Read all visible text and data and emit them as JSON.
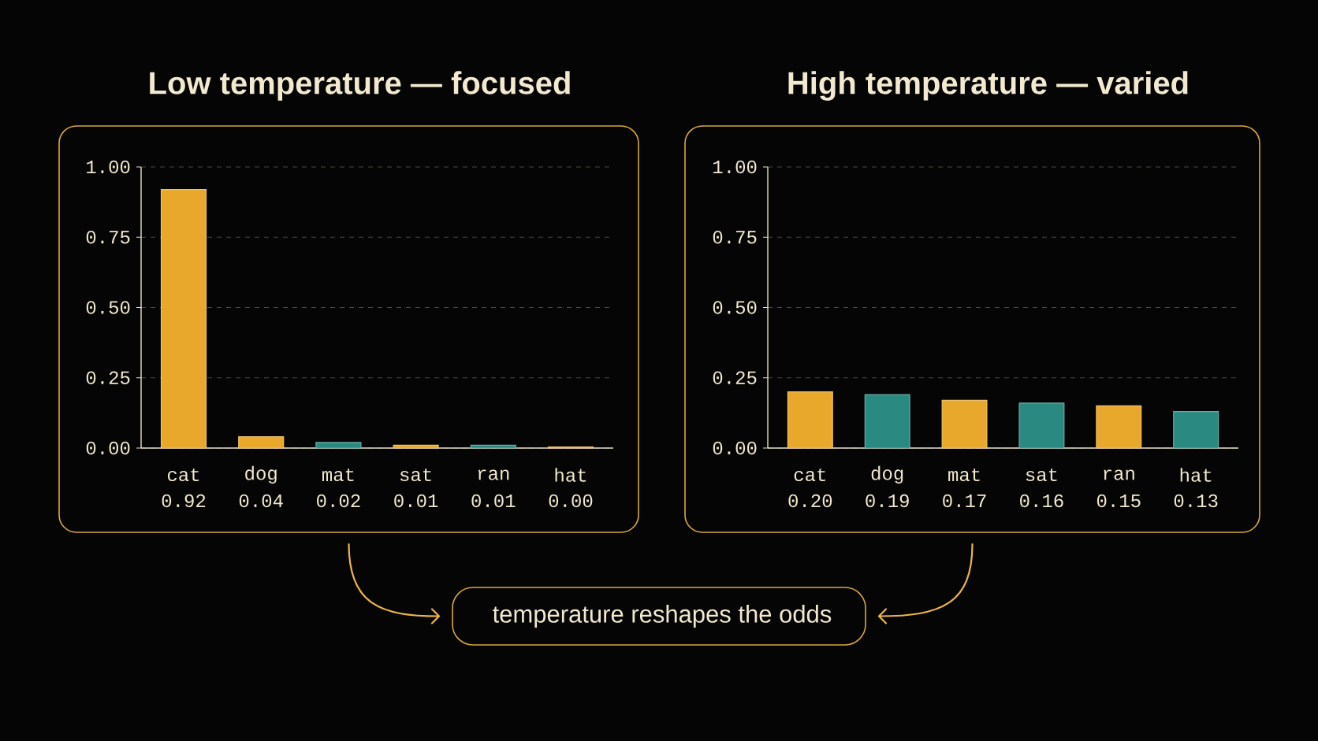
{
  "chart_data": [
    {
      "type": "bar",
      "title": "Low temperature — focused",
      "categories": [
        "cat",
        "dog",
        "mat",
        "sat",
        "ran",
        "hat"
      ],
      "values": [
        0.92,
        0.04,
        0.02,
        0.01,
        0.01,
        0.004
      ],
      "colors": [
        "#e8a82c",
        "#e8a82c",
        "#2a8a82",
        "#e8a82c",
        "#2a8a82",
        "#e8a82c"
      ],
      "value_labels": [
        "0.92",
        "0.04",
        "0.02",
        "0.01",
        "0.01",
        "0.00"
      ],
      "ylim": [
        0,
        1
      ],
      "yticks": [
        {
          "value": 0,
          "label": "0.00"
        },
        {
          "value": 0.25,
          "label": "0.25"
        },
        {
          "value": 0.5,
          "label": "0.50"
        },
        {
          "value": 0.75,
          "label": "0.75"
        },
        {
          "value": 1,
          "label": "1.00"
        }
      ],
      "grid": "y"
    },
    {
      "type": "bar",
      "title": "High temperature — varied",
      "categories": [
        "cat",
        "dog",
        "mat",
        "sat",
        "ran",
        "hat"
      ],
      "values": [
        0.2,
        0.19,
        0.17,
        0.16,
        0.15,
        0.13
      ],
      "colors": [
        "#e8a82c",
        "#2a8a82",
        "#e8a82c",
        "#2a8a82",
        "#e8a82c",
        "#2a8a82"
      ],
      "value_labels": [
        "0.20",
        "0.19",
        "0.17",
        "0.16",
        "0.15",
        "0.13"
      ],
      "ylim": [
        0,
        1
      ],
      "yticks": [
        {
          "value": 0,
          "label": "0.00"
        },
        {
          "value": 0.25,
          "label": "0.25"
        },
        {
          "value": 0.5,
          "label": "0.50"
        },
        {
          "value": 0.75,
          "label": "0.75"
        },
        {
          "value": 1,
          "label": "1.00"
        }
      ],
      "grid": "y"
    },
    {
      "type": "other",
      "annotations": [
        "temperature reshapes the odds"
      ]
    }
  ]
}
